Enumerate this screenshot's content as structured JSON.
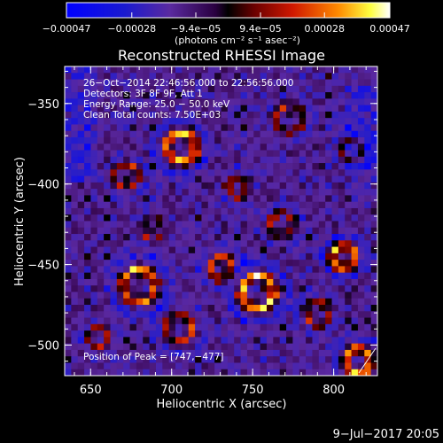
{
  "colorbar": {
    "tick_labels": [
      "−0.00047",
      "−0.00028",
      "−9.4e−05",
      "9.4e−05",
      "0.00028",
      "0.00047"
    ],
    "tick_values": [
      -0.00047,
      -0.00028,
      -9.4e-05,
      9.4e-05,
      0.00028,
      0.00047
    ],
    "range": [
      -0.00047,
      0.00047
    ],
    "units_label": "(photons cm⁻² s⁻¹ asec⁻²)"
  },
  "chart_data": {
    "type": "heatmap",
    "title": "Reconstructed RHESSI Image",
    "xlabel": "Heliocentric X (arcsec)",
    "ylabel": "Heliocentric Y (arcsec)",
    "xlim": [
      634,
      827
    ],
    "ylim": [
      -519,
      -327
    ],
    "x_ticks": [
      650,
      700,
      750,
      800
    ],
    "y_ticks": [
      -350,
      -400,
      -450,
      -500
    ],
    "x_tick_labels": [
      "650",
      "700",
      "750",
      "800"
    ],
    "y_tick_labels": [
      "−350",
      "−400",
      "−450",
      "−500"
    ],
    "colormap": [
      "#0000ff",
      "#4a00a0",
      "#3a0060",
      "#000000",
      "#800000",
      "#e02000",
      "#ff8000",
      "#ffff00",
      "#ffffff"
    ],
    "grid": false,
    "annotations": [
      "26−Oct−2014 22:46:56.000 to 22:56:56.000",
      "Detectors: 3F 8F 9F, Att 1",
      "Energy Range: 25.0 − 50.0 keV",
      "Clean     Total counts: 7.50E+03"
    ],
    "peak_label": "Position of Peak = [747,−477]",
    "peak": [
      747,
      -477
    ]
  },
  "footer": {
    "date_stamp": "9−Jul−2017 20:05"
  }
}
